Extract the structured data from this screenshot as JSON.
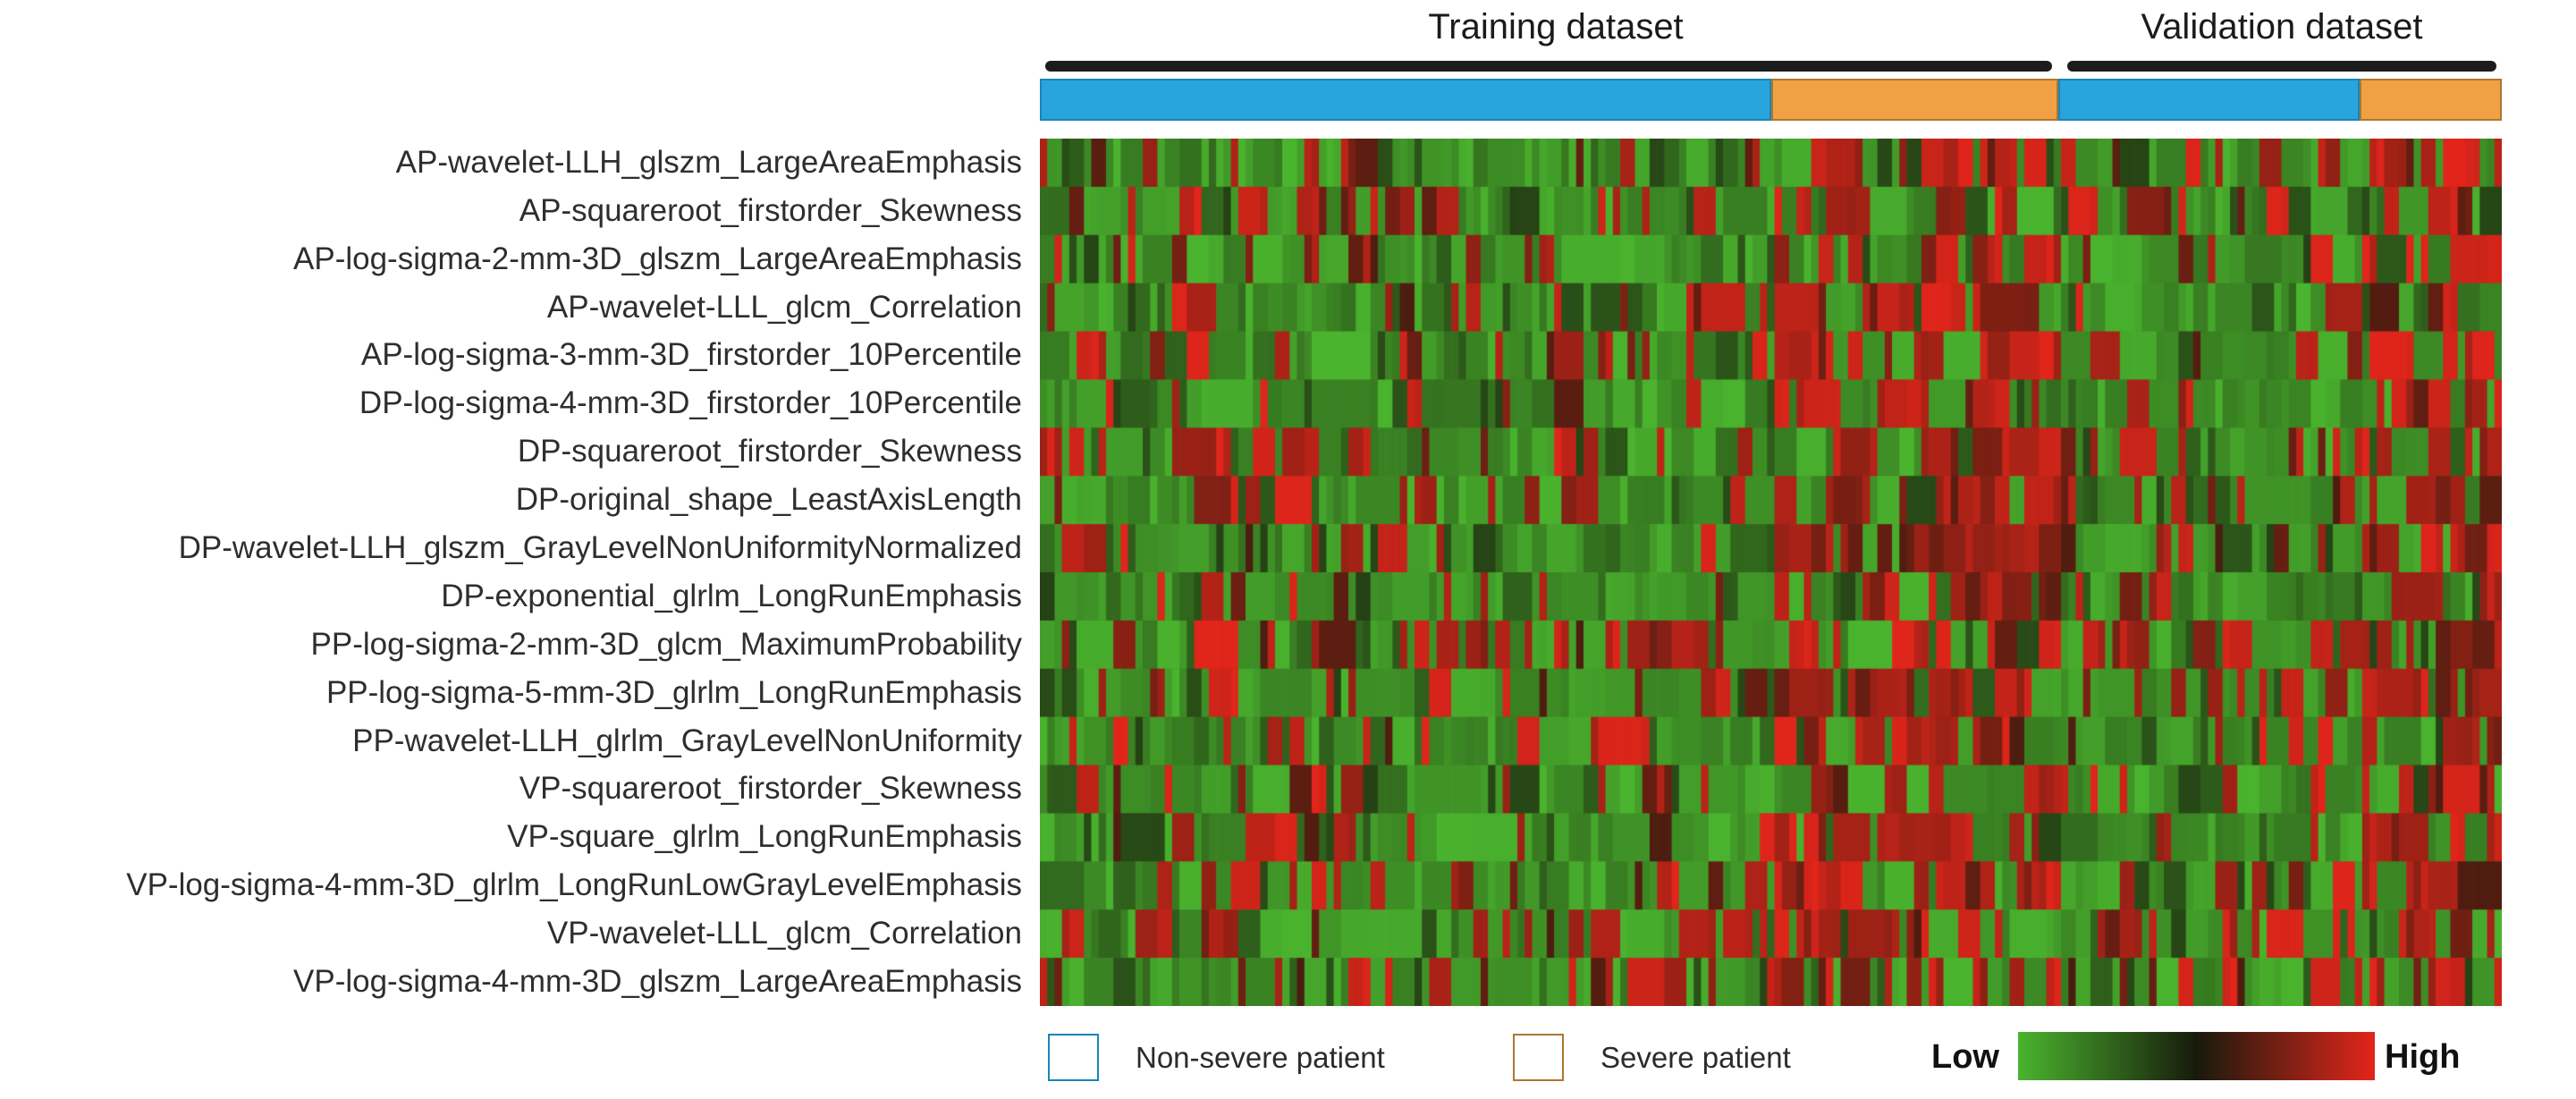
{
  "figure": {
    "header": {
      "training_label": "Training dataset",
      "validation_label": "Validation dataset"
    },
    "legend": {
      "non_severe_label": "Non-severe patient",
      "severe_label": "Severe patient",
      "low_label": "Low",
      "high_label": "High"
    },
    "colors": {
      "non_severe_blue": "#29a4dc",
      "non_severe_blue_border": "#1886b8",
      "severe_orange": "#f0a144",
      "severe_orange_border": "#ad7730",
      "underline_black": "#1c1c1c"
    }
  },
  "chart_data": {
    "type": "heatmap",
    "title": "",
    "rows": [
      "AP-wavelet-LLH_glszm_LargeAreaEmphasis",
      "AP-squareroot_firstorder_Skewness",
      "AP-log-sigma-2-mm-3D_glszm_LargeAreaEmphasis",
      "AP-wavelet-LLL_glcm_Correlation",
      "AP-log-sigma-3-mm-3D_firstorder_10Percentile",
      "DP-log-sigma-4-mm-3D_firstorder_10Percentile",
      "DP-squareroot_firstorder_Skewness",
      "DP-original_shape_LeastAxisLength",
      "DP-wavelet-LLH_glszm_GrayLevelNonUniformityNormalized",
      "DP-exponential_glrlm_LongRunEmphasis",
      "PP-log-sigma-2-mm-3D_glcm_MaximumProbability",
      "PP-log-sigma-5-mm-3D_glrlm_LongRunEmphasis",
      "PP-wavelet-LLH_glrlm_GrayLevelNonUniformity",
      "VP-squareroot_firstorder_Skewness",
      "VP-square_glrlm_LongRunEmphasis",
      "VP-log-sigma-4-mm-3D_glrlm_LongRunLowGrayLevelEmphasis",
      "VP-wavelet-LLL_glcm_Correlation",
      "VP-log-sigma-4-mm-3D_glszm_LargeAreaEmphasis"
    ],
    "column_groups": [
      {
        "dataset": "Training dataset",
        "group": "Non-severe patient",
        "color": "#29a4dc",
        "n_patients": 100
      },
      {
        "dataset": "Training dataset",
        "group": "Severe patient",
        "color": "#f0a144",
        "n_patients": 39
      },
      {
        "dataset": "Validation dataset",
        "group": "Non-severe patient",
        "color": "#29a4dc",
        "n_patients": 41
      },
      {
        "dataset": "Validation dataset",
        "group": "Severe patient",
        "color": "#f0a144",
        "n_patients": 19
      }
    ],
    "colormap": {
      "low_color": "#4ab42e",
      "mid_color": "#181a0c",
      "high_color": "#e2251b",
      "low_label": "Low",
      "high_label": "High"
    },
    "row_red_fraction_by_section": [
      [
        0.2,
        0.55,
        0.25,
        0.5
      ],
      [
        0.3,
        0.6,
        0.3,
        0.55
      ],
      [
        0.2,
        0.6,
        0.25,
        0.6
      ],
      [
        0.25,
        0.65,
        0.3,
        0.6
      ],
      [
        0.2,
        0.75,
        0.2,
        0.65
      ],
      [
        0.2,
        0.75,
        0.2,
        0.7
      ],
      [
        0.3,
        0.6,
        0.3,
        0.55
      ],
      [
        0.25,
        0.7,
        0.3,
        0.6
      ],
      [
        0.25,
        0.65,
        0.3,
        0.6
      ],
      [
        0.2,
        0.7,
        0.25,
        0.65
      ],
      [
        0.5,
        0.5,
        0.45,
        0.35
      ],
      [
        0.2,
        0.7,
        0.2,
        0.75
      ],
      [
        0.25,
        0.7,
        0.25,
        0.7
      ],
      [
        0.3,
        0.6,
        0.3,
        0.5
      ],
      [
        0.2,
        0.7,
        0.2,
        0.65
      ],
      [
        0.25,
        0.65,
        0.25,
        0.6
      ],
      [
        0.3,
        0.65,
        0.3,
        0.6
      ],
      [
        0.2,
        0.6,
        0.2,
        0.55
      ]
    ],
    "seed": 7
  }
}
